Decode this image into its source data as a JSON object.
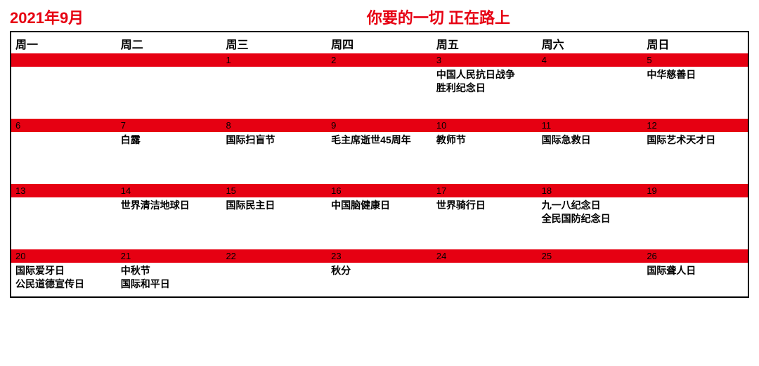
{
  "title_month": "2021年9月",
  "title_slogan": "你要的一切 正在路上",
  "colors": {
    "accent": "#e60012",
    "border": "#000000",
    "bg": "#ffffff"
  },
  "weekdays": [
    "周一",
    "周二",
    "周三",
    "周四",
    "周五",
    "周六",
    "周日"
  ],
  "weeks": [
    {
      "nums": [
        "",
        "",
        "1",
        "2",
        "3",
        "4",
        "5"
      ],
      "events": [
        [],
        [],
        [],
        [],
        [
          "中国人民抗日战争",
          "胜利纪念日"
        ],
        [],
        [
          "中华慈善日"
        ]
      ]
    },
    {
      "nums": [
        "6",
        "7",
        "8",
        "9",
        "10",
        "11",
        "12"
      ],
      "events": [
        [],
        [
          "白露"
        ],
        [
          "国际扫盲节"
        ],
        [
          "毛主席逝世45周年"
        ],
        [
          "教师节"
        ],
        [
          "国际急救日"
        ],
        [
          "国际艺术天才日"
        ]
      ]
    },
    {
      "nums": [
        "13",
        "14",
        "15",
        "16",
        "17",
        "18",
        "19"
      ],
      "events": [
        [],
        [
          "世界清洁地球日"
        ],
        [
          "国际民主日"
        ],
        [
          "中国脑健康日"
        ],
        [
          "世界骑行日"
        ],
        [
          "九一八纪念日",
          "全民国防纪念日"
        ],
        []
      ]
    },
    {
      "nums": [
        "20",
        "21",
        "22",
        "23",
        "24",
        "25",
        "26"
      ],
      "events": [
        [
          "国际爱牙日",
          "公民道德宣传日"
        ],
        [
          "中秋节",
          "国际和平日"
        ],
        [],
        [
          "秋分"
        ],
        [],
        [],
        [
          "国际聋人日"
        ]
      ],
      "short": true
    }
  ]
}
